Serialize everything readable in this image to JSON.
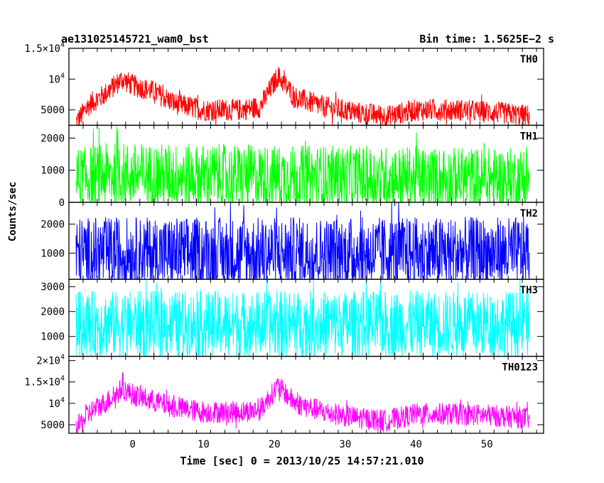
{
  "header": {
    "title": "ae131025145721_wam0_bst",
    "bin_time": "Bin time: 1.5625E−2 s"
  },
  "chart_data": {
    "type": "line",
    "xlabel": "Time [sec] 0 = 2013/10/25 14:57:21.010",
    "ylabel": "Counts/sec",
    "xlim": [
      -9,
      58
    ],
    "x_ticks": [
      0,
      10,
      20,
      30,
      40,
      50
    ],
    "data_x_range": [
      -8,
      56
    ],
    "panels": [
      {
        "name": "TH0",
        "color": "#ff0000",
        "ylim": [
          2500,
          15000
        ],
        "y_ticks": [
          {
            "value": 5000,
            "label": "5000"
          },
          {
            "value": 10000,
            "label": "10",
            "exp": "4"
          },
          {
            "value": 15000,
            "label": "1.5×10",
            "exp": "4"
          }
        ],
        "profile": [
          [
            -8,
            3000
          ],
          [
            -6,
            6000
          ],
          [
            -4,
            7500
          ],
          [
            -2,
            9500
          ],
          [
            -1.5,
            10000
          ],
          [
            0,
            9000
          ],
          [
            3,
            8000
          ],
          [
            6,
            6000
          ],
          [
            10,
            5000
          ],
          [
            15,
            5000
          ],
          [
            18,
            5500
          ],
          [
            20.5,
            10500
          ],
          [
            23,
            7000
          ],
          [
            27,
            5500
          ],
          [
            32,
            4500
          ],
          [
            36,
            4000
          ],
          [
            40,
            5000
          ],
          [
            46,
            5000
          ],
          [
            52,
            4500
          ],
          [
            56,
            4000
          ]
        ],
        "noise": 1800
      },
      {
        "name": "TH1",
        "color": "#00ff00",
        "ylim": [
          0,
          2400
        ],
        "y_ticks": [
          {
            "value": 0,
            "label": "0"
          },
          {
            "value": 1000,
            "label": "1000"
          },
          {
            "value": 2000,
            "label": "2000"
          }
        ],
        "profile": [
          [
            -8,
            700
          ],
          [
            -2,
            900
          ],
          [
            0,
            850
          ],
          [
            20,
            800
          ],
          [
            56,
            700
          ]
        ],
        "noise": 1000
      },
      {
        "name": "TH2",
        "color": "#0000ff",
        "ylim": [
          100,
          2750
        ],
        "y_ticks": [
          {
            "value": 1000,
            "label": "1000"
          },
          {
            "value": 2000,
            "label": "2000"
          }
        ],
        "profile": [
          [
            -8,
            1000
          ],
          [
            56,
            1000
          ]
        ],
        "noise": 1250
      },
      {
        "name": "TH3",
        "color": "#00ffff",
        "ylim": [
          200,
          3300
        ],
        "y_ticks": [
          {
            "value": 1000,
            "label": "1000"
          },
          {
            "value": 2000,
            "label": "2000"
          },
          {
            "value": 3000,
            "label": "3000"
          }
        ],
        "profile": [
          [
            -8,
            1500
          ],
          [
            56,
            1500
          ]
        ],
        "noise": 1350
      },
      {
        "name": "TH0123",
        "color": "#ff00ff",
        "ylim": [
          3000,
          21000
        ],
        "y_ticks": [
          {
            "value": 5000,
            "label": "5000"
          },
          {
            "value": 10000,
            "label": "10",
            "exp": "4"
          },
          {
            "value": 15000,
            "label": "1.5×10",
            "exp": "4"
          },
          {
            "value": 20000,
            "label": "2×10",
            "exp": "4"
          }
        ],
        "profile": [
          [
            -8,
            4000
          ],
          [
            -6,
            8000
          ],
          [
            -4,
            10000
          ],
          [
            -2,
            12500
          ],
          [
            -1.5,
            13500
          ],
          [
            0,
            12000
          ],
          [
            3,
            10500
          ],
          [
            6,
            9000
          ],
          [
            10,
            8000
          ],
          [
            15,
            8000
          ],
          [
            18,
            8500
          ],
          [
            20.5,
            14000
          ],
          [
            23,
            10000
          ],
          [
            27,
            8000
          ],
          [
            32,
            6500
          ],
          [
            36,
            6000
          ],
          [
            40,
            7500
          ],
          [
            46,
            7500
          ],
          [
            52,
            7000
          ],
          [
            56,
            6500
          ]
        ],
        "noise": 2600
      }
    ]
  }
}
